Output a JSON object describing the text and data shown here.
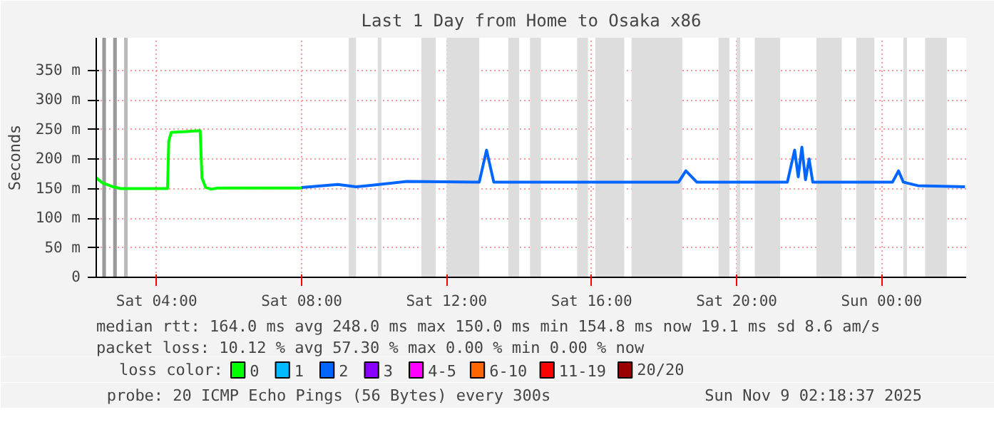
{
  "chart_data": {
    "type": "line",
    "title": "Last 1 Day from Home to Osaka x86",
    "ylabel": "Seconds",
    "xlim": [
      "2025-11-08T02:20",
      "2025-11-09T02:20"
    ],
    "ylim": [
      0,
      405
    ],
    "xticks": [
      {
        "value": "2025-11-08T04:00",
        "label": "Sat 04:00"
      },
      {
        "value": "2025-11-08T08:00",
        "label": "Sat 08:00"
      },
      {
        "value": "2025-11-08T12:00",
        "label": "Sat 12:00"
      },
      {
        "value": "2025-11-08T16:00",
        "label": "Sat 16:00"
      },
      {
        "value": "2025-11-08T20:00",
        "label": "Sat 20:00"
      },
      {
        "value": "2025-11-09T00:00",
        "label": "Sun 00:00"
      }
    ],
    "yticks": [
      {
        "value": 0,
        "label": "0"
      },
      {
        "value": 50,
        "label": "50 m"
      },
      {
        "value": 100,
        "label": "100 m"
      },
      {
        "value": 150,
        "label": "150 m"
      },
      {
        "value": 200,
        "label": "200 m"
      },
      {
        "value": 250,
        "label": "250 m"
      },
      {
        "value": 300,
        "label": "300 m"
      },
      {
        "value": 350,
        "label": "350 m"
      }
    ],
    "grid": true,
    "legend": "bottom",
    "legend_title": "loss color:",
    "series": [
      {
        "name": "0",
        "color": "#00ff00",
        "x": [
          "2025-11-08T02:20",
          "2025-11-08T02:30",
          "2025-11-08T02:48",
          "2025-11-08T03:00",
          "2025-11-08T04:18",
          "2025-11-08T04:20",
          "2025-11-08T04:24",
          "2025-11-08T05:12",
          "2025-11-08T05:15",
          "2025-11-08T05:21",
          "2025-11-08T05:30",
          "2025-11-08T05:42",
          "2025-11-08T08:00"
        ],
        "values": [
          168,
          160,
          153,
          150,
          150,
          230,
          245,
          248,
          168,
          152,
          149,
          151,
          151
        ]
      },
      {
        "name": "1",
        "color": "#00bbff"
      },
      {
        "name": "2",
        "color": "#0066ff",
        "x": [
          "2025-11-08T08:00",
          "2025-11-08T09:00",
          "2025-11-08T09:30",
          "2025-11-08T10:00",
          "2025-11-08T10:54",
          "2025-11-08T12:54",
          "2025-11-08T13:06",
          "2025-11-08T13:18",
          "2025-11-08T18:24",
          "2025-11-08T18:36",
          "2025-11-08T18:54",
          "2025-11-08T21:24",
          "2025-11-08T21:36",
          "2025-11-08T21:42",
          "2025-11-08T21:48",
          "2025-11-08T21:54",
          "2025-11-08T22:00",
          "2025-11-08T22:06",
          "2025-11-09T00:18",
          "2025-11-09T00:28",
          "2025-11-09T00:36",
          "2025-11-09T01:00",
          "2025-11-09T02:18"
        ],
        "values": [
          152,
          157,
          153,
          156,
          162,
          161,
          215,
          161,
          161,
          180,
          161,
          161,
          215,
          170,
          220,
          165,
          200,
          161,
          161,
          180,
          161,
          155,
          153
        ]
      },
      {
        "name": "3",
        "color": "#8800ff"
      },
      {
        "name": "4-5",
        "color": "#ff00ff"
      },
      {
        "name": "6-10",
        "color": "#ff6600"
      },
      {
        "name": "11-19",
        "color": "#ff0000"
      },
      {
        "name": "20/20",
        "color": "#990000"
      }
    ],
    "bands": [
      {
        "axis": "x",
        "from": "2025-11-08T02:30",
        "to": "2025-11-08T02:36",
        "color": "#999999"
      },
      {
        "axis": "x",
        "from": "2025-11-08T02:48",
        "to": "2025-11-08T02:54",
        "color": "#999999"
      },
      {
        "axis": "x",
        "from": "2025-11-08T03:06",
        "to": "2025-11-08T03:12",
        "color": "#bbbbbb"
      },
      {
        "axis": "x",
        "from": "2025-11-08T09:18",
        "to": "2025-11-08T09:30",
        "color": "#dddddd"
      },
      {
        "axis": "x",
        "from": "2025-11-08T10:06",
        "to": "2025-11-08T10:12",
        "color": "#dddddd"
      },
      {
        "axis": "x",
        "from": "2025-11-08T11:18",
        "to": "2025-11-08T11:42",
        "color": "#dddddd"
      },
      {
        "axis": "x",
        "from": "2025-11-08T12:00",
        "to": "2025-11-08T12:54",
        "color": "#dddddd"
      },
      {
        "axis": "x",
        "from": "2025-11-08T13:42",
        "to": "2025-11-08T14:00",
        "color": "#dddddd"
      },
      {
        "axis": "x",
        "from": "2025-11-08T14:18",
        "to": "2025-11-08T14:36",
        "color": "#dddddd"
      },
      {
        "axis": "x",
        "from": "2025-11-08T15:36",
        "to": "2025-11-08T15:54",
        "color": "#dddddd"
      },
      {
        "axis": "x",
        "from": "2025-11-08T16:06",
        "to": "2025-11-08T16:54",
        "color": "#dddddd"
      },
      {
        "axis": "x",
        "from": "2025-11-08T17:06",
        "to": "2025-11-08T18:30",
        "color": "#dddddd"
      },
      {
        "axis": "x",
        "from": "2025-11-08T19:30",
        "to": "2025-11-08T19:48",
        "color": "#dddddd"
      },
      {
        "axis": "x",
        "from": "2025-11-08T20:00",
        "to": "2025-11-08T20:06",
        "color": "#dddddd"
      },
      {
        "axis": "x",
        "from": "2025-11-08T20:30",
        "to": "2025-11-08T21:12",
        "color": "#dddddd"
      },
      {
        "axis": "x",
        "from": "2025-11-08T22:12",
        "to": "2025-11-08T22:54",
        "color": "#dddddd"
      },
      {
        "axis": "x",
        "from": "2025-11-08T23:18",
        "to": "2025-11-08T23:48",
        "color": "#dddddd"
      },
      {
        "axis": "x",
        "from": "2025-11-09T00:36",
        "to": "2025-11-09T00:42",
        "color": "#dddddd"
      },
      {
        "axis": "x",
        "from": "2025-11-09T01:12",
        "to": "2025-11-09T01:48",
        "color": "#dddddd"
      }
    ],
    "annotations": [
      "median rtt:  164.0 ms avg   248.0 ms max   150.0 ms min   154.8 ms now   19.1 ms sd   8.6    am/s",
      "packet loss: 10.12 % avg   57.30 % max    0.00 % min    0.00 % now",
      "probe:       20 ICMP Echo Pings (56 Bytes) every 300s",
      "Sun Nov  9 02:18:37 2025"
    ]
  }
}
